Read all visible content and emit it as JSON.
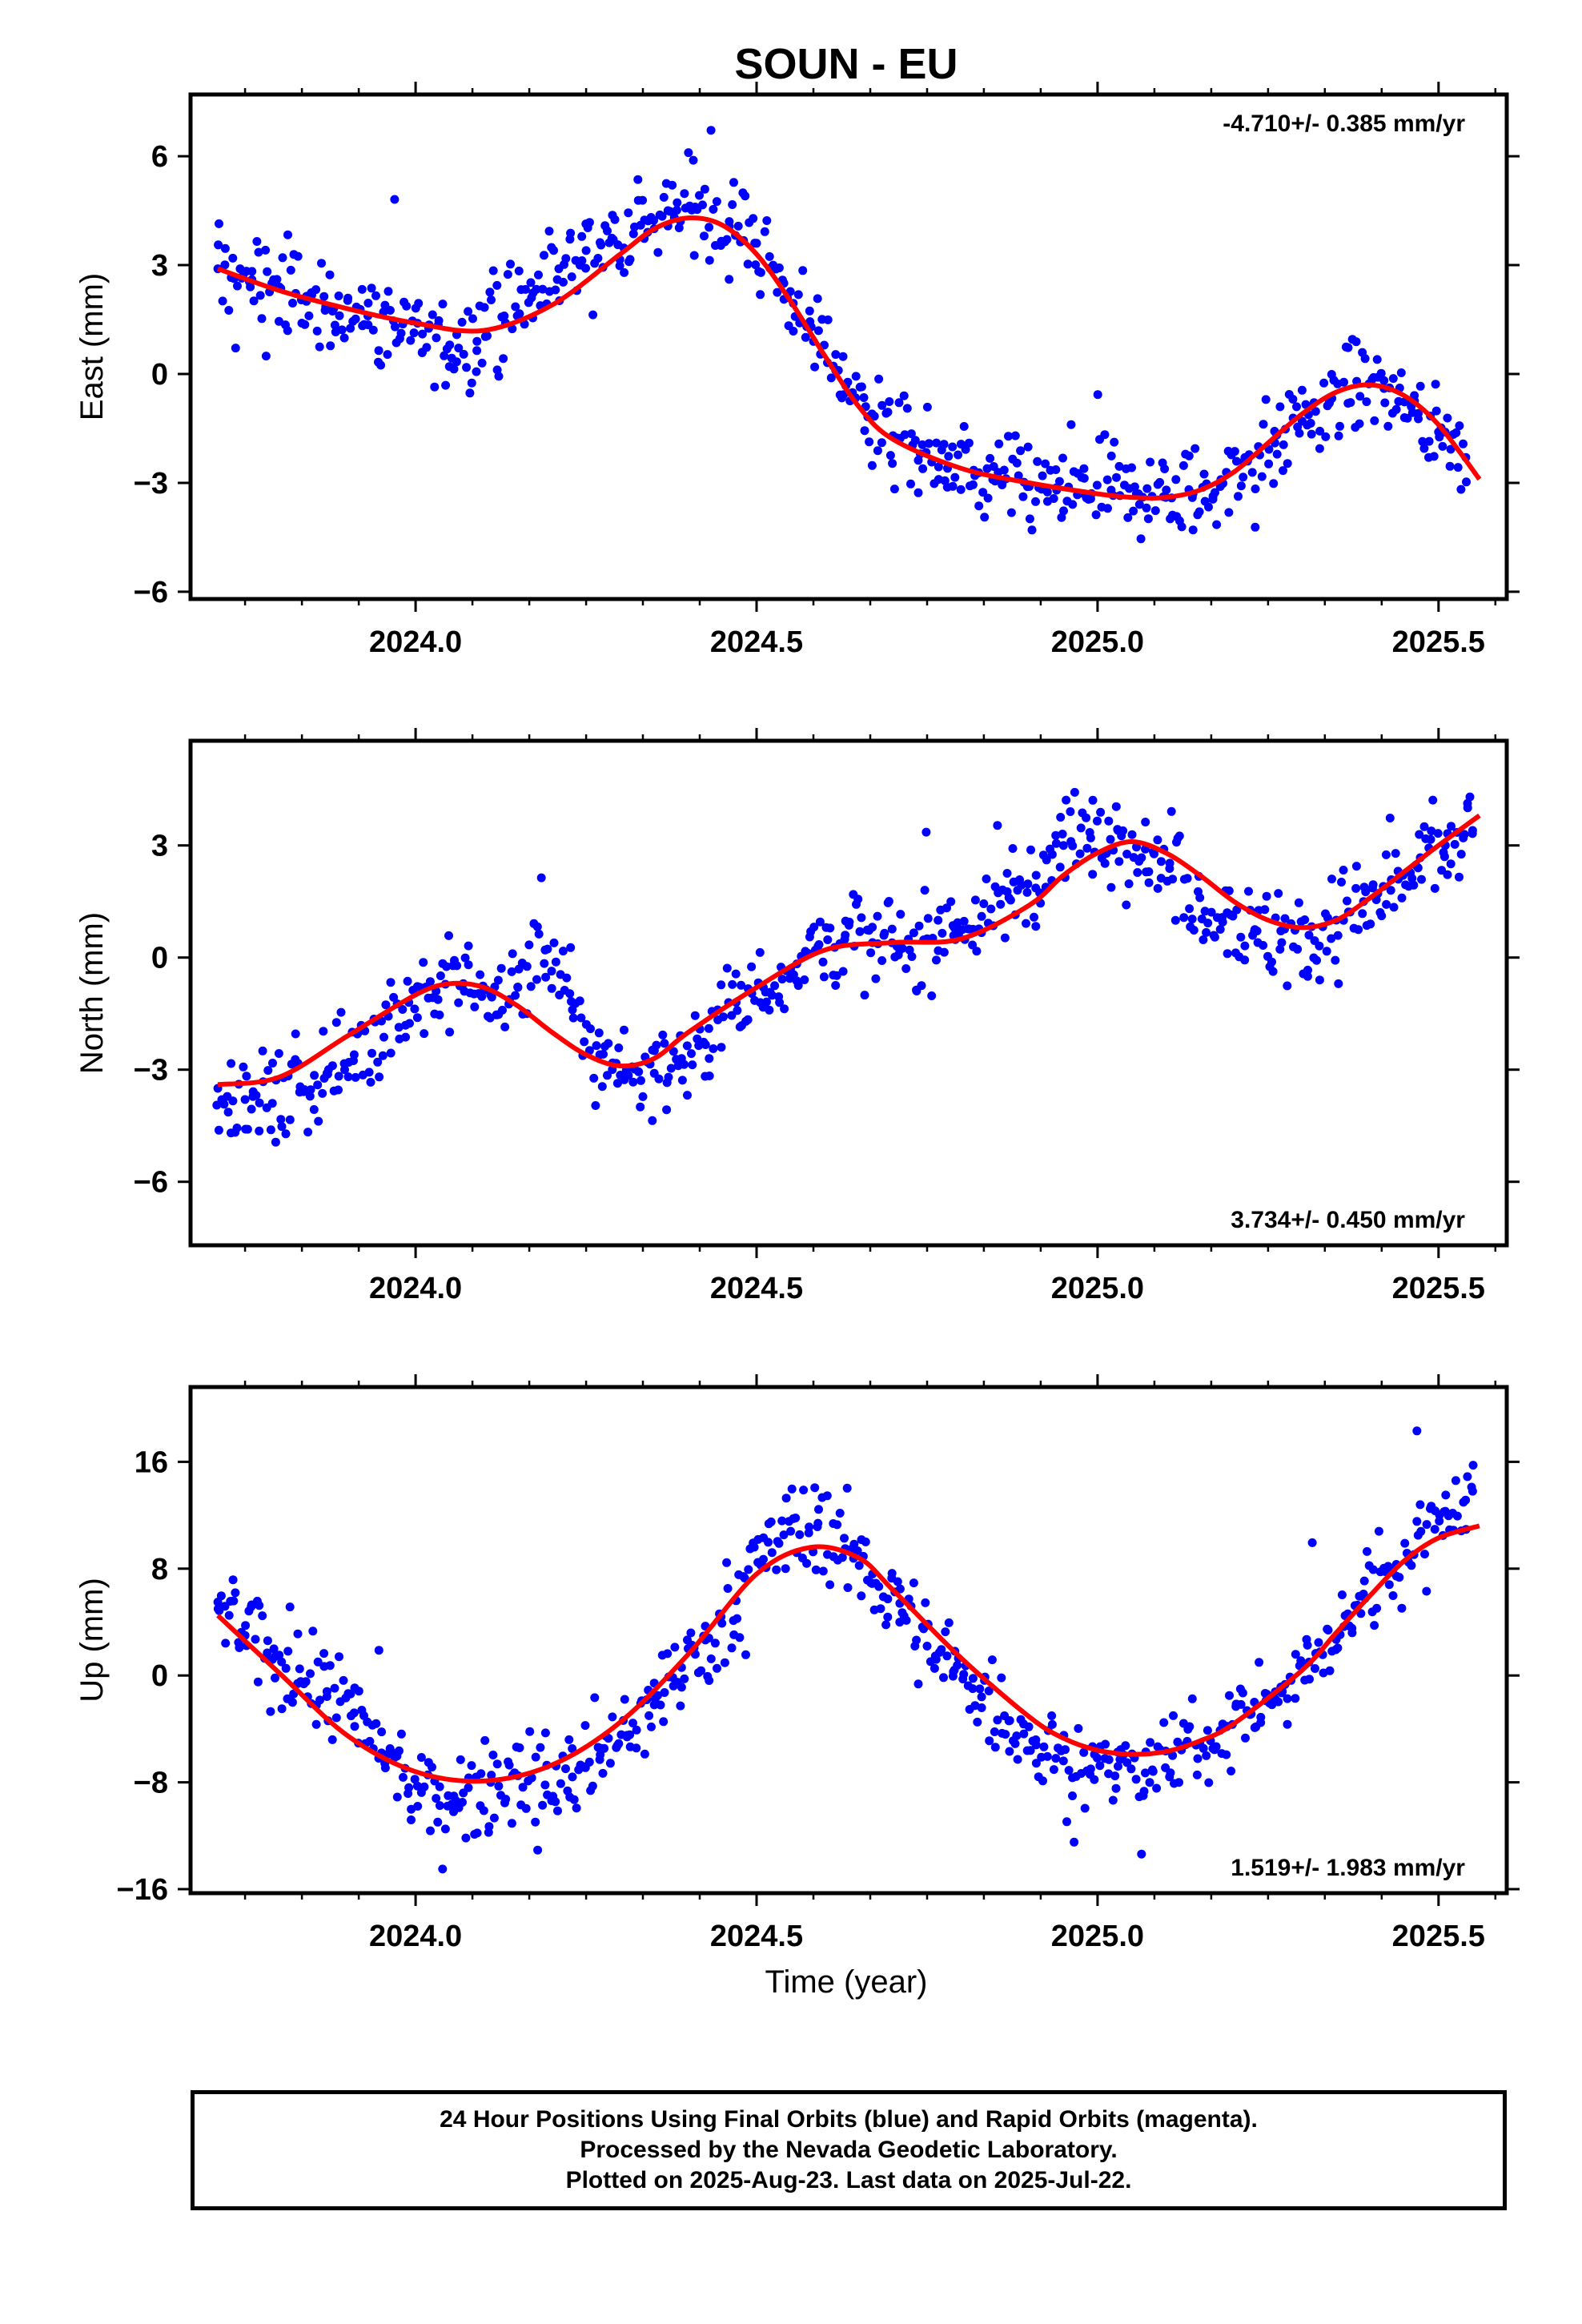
{
  "figure_title": "SOUN - EU",
  "xlabel": "Time (year)",
  "footer": {
    "line1": "24 Hour Positions Using Final Orbits (blue) and Rapid Orbits (magenta).",
    "line2": "Processed by the Nevada Geodetic Laboratory.",
    "line3": "Plotted on 2025-Aug-23. Last data on 2025-Jul-22."
  },
  "colors": {
    "points": "#0000ff",
    "fit": "#ff0000",
    "frame": "#000000"
  },
  "chart_data": [
    {
      "type": "scatter",
      "title": "SOUN - EU",
      "xlabel": "",
      "ylabel": "East (mm)",
      "xlim": [
        2023.67,
        2025.6
      ],
      "ylim": [
        -6.2,
        7.7
      ],
      "xticks": [
        2024.0,
        2024.5,
        2025.0,
        2025.5
      ],
      "xtick_labels": [
        "2024.0",
        "2024.5",
        "2025.0",
        "2025.5"
      ],
      "yticks": [
        -6,
        -3,
        0,
        3,
        6
      ],
      "ytick_labels": [
        "−6",
        "−3",
        "0",
        "3",
        "6"
      ],
      "rate_label": "-4.710+/- 0.385 mm/yr",
      "rate_position": "top-right",
      "series": [
        {
          "kind": "points",
          "x": [
            2023.71,
            2023.76,
            2023.8,
            2023.84,
            2023.88,
            2023.93,
            2023.97,
            2024.01,
            2024.05,
            2024.09,
            2024.13,
            2024.17,
            2024.21,
            2024.25,
            2024.29,
            2024.33,
            2024.37,
            2024.41,
            2024.46,
            2024.5,
            2024.54,
            2024.58,
            2024.62,
            2024.66,
            2024.7,
            2024.74,
            2024.78,
            2024.82,
            2024.86,
            2024.9,
            2024.94,
            2024.98,
            2025.02,
            2025.06,
            2025.1,
            2025.14,
            2025.18,
            2025.22,
            2025.26,
            2025.3,
            2025.34,
            2025.38,
            2025.42,
            2025.46,
            2025.5,
            2025.54
          ],
          "y": [
            2.9,
            2.6,
            2.4,
            2.0,
            1.8,
            1.6,
            1.3,
            1.1,
            0.8,
            0.9,
            1.6,
            2.1,
            2.9,
            3.4,
            3.7,
            4.1,
            4.5,
            4.6,
            4.2,
            3.6,
            2.5,
            1.3,
            0.1,
            -0.9,
            -1.7,
            -2.2,
            -2.6,
            -2.8,
            -3.0,
            -3.1,
            -3.2,
            -3.3,
            -3.2,
            -3.3,
            -3.4,
            -3.3,
            -3.1,
            -2.4,
            -1.9,
            -1.3,
            -0.8,
            -0.2,
            -0.4,
            -0.9,
            -1.6,
            -2.3
          ]
        },
        {
          "kind": "fit",
          "x": [
            2023.71,
            2023.8,
            2023.9,
            2024.0,
            2024.1,
            2024.2,
            2024.3,
            2024.35,
            2024.4,
            2024.45,
            2024.5,
            2024.55,
            2024.6,
            2024.65,
            2024.7,
            2024.8,
            2024.9,
            2025.0,
            2025.05,
            2025.1,
            2025.15,
            2025.2,
            2025.25,
            2025.3,
            2025.35,
            2025.4,
            2025.45,
            2025.5,
            2025.56
          ],
          "y": [
            2.9,
            2.3,
            1.8,
            1.4,
            1.2,
            1.9,
            3.3,
            4.0,
            4.3,
            4.1,
            3.3,
            2.0,
            0.5,
            -0.9,
            -1.8,
            -2.6,
            -3.0,
            -3.3,
            -3.4,
            -3.4,
            -3.2,
            -2.7,
            -1.9,
            -1.1,
            -0.5,
            -0.3,
            -0.6,
            -1.4,
            -2.9
          ]
        }
      ]
    },
    {
      "type": "scatter",
      "title": "",
      "xlabel": "",
      "ylabel": "North (mm)",
      "xlim": [
        2023.67,
        2025.6
      ],
      "ylim": [
        -7.7,
        5.8
      ],
      "xticks": [
        2024.0,
        2024.5,
        2025.0,
        2025.5
      ],
      "xtick_labels": [
        "2024.0",
        "2024.5",
        "2025.0",
        "2025.5"
      ],
      "yticks": [
        -6,
        -3,
        0,
        3
      ],
      "ytick_labels": [
        "−6",
        "−3",
        "0",
        "3"
      ],
      "rate_label": "3.734+/- 0.450 mm/yr",
      "rate_position": "bottom-right",
      "series": [
        {
          "kind": "points",
          "x": [
            2023.71,
            2023.75,
            2023.79,
            2023.83,
            2023.87,
            2023.91,
            2023.95,
            2023.99,
            2024.03,
            2024.07,
            2024.11,
            2024.15,
            2024.19,
            2024.23,
            2024.27,
            2024.31,
            2024.35,
            2024.39,
            2024.43,
            2024.47,
            2024.51,
            2024.55,
            2024.59,
            2024.63,
            2024.67,
            2024.71,
            2024.75,
            2024.79,
            2024.83,
            2024.87,
            2024.91,
            2024.95,
            2024.99,
            2025.03,
            2025.07,
            2025.11,
            2025.15,
            2025.19,
            2025.23,
            2025.27,
            2025.31,
            2025.35,
            2025.39,
            2025.43,
            2025.47,
            2025.51,
            2025.55
          ],
          "y": [
            -3.5,
            -3.8,
            -3.9,
            -3.6,
            -3.1,
            -2.6,
            -1.7,
            -1.2,
            -0.9,
            -0.7,
            -1.0,
            -0.8,
            0.2,
            -1.4,
            -2.6,
            -3.0,
            -3.1,
            -2.7,
            -1.9,
            -1.2,
            -0.8,
            -0.3,
            0.3,
            0.6,
            0.4,
            0.2,
            0.5,
            0.8,
            1.1,
            1.6,
            2.2,
            3.0,
            3.2,
            3.4,
            2.9,
            2.1,
            1.6,
            1.2,
            0.7,
            0.4,
            0.6,
            1.0,
            1.5,
            1.8,
            2.4,
            3.0,
            3.4
          ]
        },
        {
          "kind": "fit",
          "x": [
            2023.71,
            2023.8,
            2023.9,
            2024.0,
            2024.05,
            2024.1,
            2024.15,
            2024.2,
            2024.25,
            2024.3,
            2024.35,
            2024.4,
            2024.5,
            2024.6,
            2024.7,
            2024.8,
            2024.9,
            2024.95,
            2025.0,
            2025.05,
            2025.1,
            2025.15,
            2025.2,
            2025.25,
            2025.3,
            2025.35,
            2025.4,
            2025.45,
            2025.5,
            2025.56
          ],
          "y": [
            -3.4,
            -3.2,
            -2.1,
            -1.0,
            -0.7,
            -0.8,
            -1.3,
            -2.0,
            -2.6,
            -2.9,
            -2.7,
            -2.0,
            -0.8,
            0.2,
            0.4,
            0.5,
            1.4,
            2.2,
            2.8,
            3.1,
            2.8,
            2.2,
            1.5,
            1.0,
            0.8,
            1.0,
            1.6,
            2.3,
            3.0,
            3.8
          ]
        }
      ]
    },
    {
      "type": "scatter",
      "title": "",
      "xlabel": "Time (year)",
      "ylabel": "Up (mm)",
      "xlim": [
        2023.67,
        2025.6
      ],
      "ylim": [
        -16.3,
        21.6
      ],
      "xticks": [
        2024.0,
        2024.5,
        2025.0,
        2025.5
      ],
      "xtick_labels": [
        "2024.0",
        "2024.5",
        "2025.0",
        "2025.5"
      ],
      "yticks": [
        -16,
        -8,
        0,
        8,
        16
      ],
      "ytick_labels": [
        "−16",
        "−8",
        "0",
        "8",
        "16"
      ],
      "rate_label": "1.519+/- 1.983 mm/yr",
      "rate_position": "bottom-right",
      "series": [
        {
          "kind": "points",
          "x": [
            2023.71,
            2023.75,
            2023.79,
            2023.83,
            2023.87,
            2023.91,
            2023.95,
            2023.99,
            2024.03,
            2024.07,
            2024.11,
            2024.15,
            2024.19,
            2024.23,
            2024.27,
            2024.31,
            2024.35,
            2024.39,
            2024.43,
            2024.47,
            2024.51,
            2024.55,
            2024.59,
            2024.63,
            2024.67,
            2024.71,
            2024.75,
            2024.79,
            2024.83,
            2024.87,
            2024.91,
            2024.95,
            2024.99,
            2025.03,
            2025.07,
            2025.11,
            2025.15,
            2025.19,
            2025.23,
            2025.27,
            2025.31,
            2025.35,
            2025.39,
            2025.43,
            2025.47,
            2025.51,
            2025.55
          ],
          "y": [
            5.5,
            3.0,
            1.2,
            0.5,
            -1.2,
            -2.8,
            -5.8,
            -8.4,
            -9.2,
            -8.8,
            -8.0,
            -7.5,
            -8.2,
            -7.6,
            -6.3,
            -4.6,
            -2.2,
            0.6,
            2.8,
            5.6,
            8.7,
            10.8,
            11.4,
            9.5,
            7.6,
            5.4,
            2.2,
            0.4,
            -1.6,
            -3.4,
            -5.2,
            -6.4,
            -7.0,
            -6.8,
            -7.3,
            -6.0,
            -5.1,
            -3.8,
            -2.0,
            -1.3,
            1.0,
            2.7,
            6.1,
            7.9,
            10.5,
            12.3,
            13.8
          ]
        },
        {
          "kind": "fit",
          "x": [
            2023.71,
            2023.8,
            2023.9,
            2024.0,
            2024.1,
            2024.2,
            2024.3,
            2024.4,
            2024.5,
            2024.58,
            2024.65,
            2024.7,
            2024.8,
            2024.9,
            2024.95,
            2025.0,
            2025.05,
            2025.1,
            2025.15,
            2025.2,
            2025.3,
            2025.35,
            2025.4,
            2025.45,
            2025.5,
            2025.56
          ],
          "y": [
            4.5,
            0.2,
            -4.5,
            -7.2,
            -7.9,
            -6.7,
            -3.5,
            1.6,
            7.6,
            9.6,
            8.8,
            6.4,
            1.3,
            -3.1,
            -4.7,
            -5.6,
            -5.9,
            -5.7,
            -4.9,
            -3.6,
            0.4,
            3.2,
            6.0,
            8.6,
            10.3,
            11.2
          ]
        }
      ]
    }
  ]
}
